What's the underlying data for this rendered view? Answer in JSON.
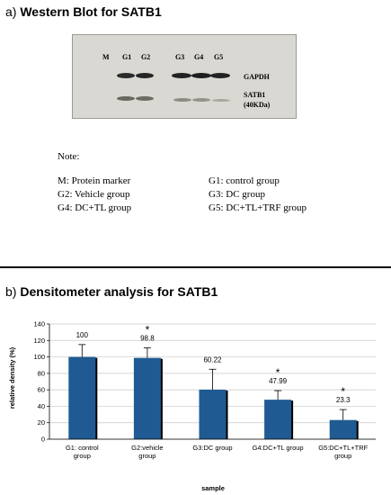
{
  "section_a": {
    "prefix": "a) ",
    "title": "Western Blot for SATB1",
    "lanes": [
      "M",
      "G1",
      "G2",
      "G3",
      "G4",
      "G5"
    ],
    "band_labels": {
      "gapdh": "GAPDH",
      "satb1": "SATB1",
      "satb1_size": "(40KDa)"
    }
  },
  "note": {
    "title": "Note:",
    "items": [
      "M: Protein marker",
      "G1: control group",
      "G2: Vehicle  group",
      "G3: DC group",
      "G4: DC+TL group",
      "G5: DC+TL+TRF group"
    ]
  },
  "section_b": {
    "prefix": "b) ",
    "title": "Densitometer analysis for SATB1"
  },
  "chart_data": {
    "type": "bar",
    "categories": [
      "G1: control group",
      "G2:vehicle group",
      "G3:DC group",
      "G4:DC+TL group",
      "G5:DC+TL+TRF group"
    ],
    "values": [
      100,
      98.8,
      60.22,
      47.99,
      23.3
    ],
    "value_labels": [
      "100",
      "98.8",
      "60.22",
      "47.99",
      "23.3"
    ],
    "error_upper": [
      115,
      111,
      85,
      59,
      36
    ],
    "significance": [
      "",
      "*",
      "",
      "*",
      "*"
    ],
    "xlabel": "sample",
    "ylabel": "relative density (%)",
    "ylim": [
      0,
      140
    ],
    "yticks": [
      0,
      20,
      40,
      60,
      80,
      100,
      120,
      140
    ],
    "bar_color": "#1f5b92",
    "bar_shadow_color": "#000000",
    "gridlines": true
  }
}
